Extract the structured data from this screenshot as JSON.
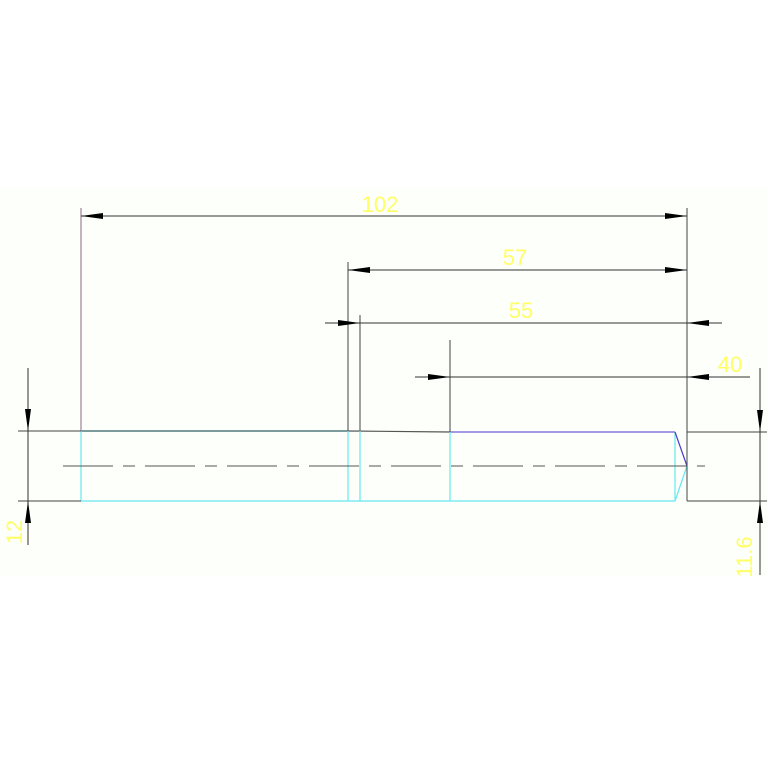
{
  "drawing": {
    "dimensions": {
      "overall_length": "102",
      "length_57": "57",
      "length_55": "55",
      "length_40": "40",
      "left_diameter": "12",
      "right_diameter": "11.6"
    },
    "colors": {
      "background": "#fcfffa",
      "dimension_text": "#ffff66",
      "dimension_line": "#333333",
      "outline_cyan": "#66e8f0",
      "outline_blue": "#6a5cd6",
      "extension_line": "#8a6a8a"
    }
  }
}
